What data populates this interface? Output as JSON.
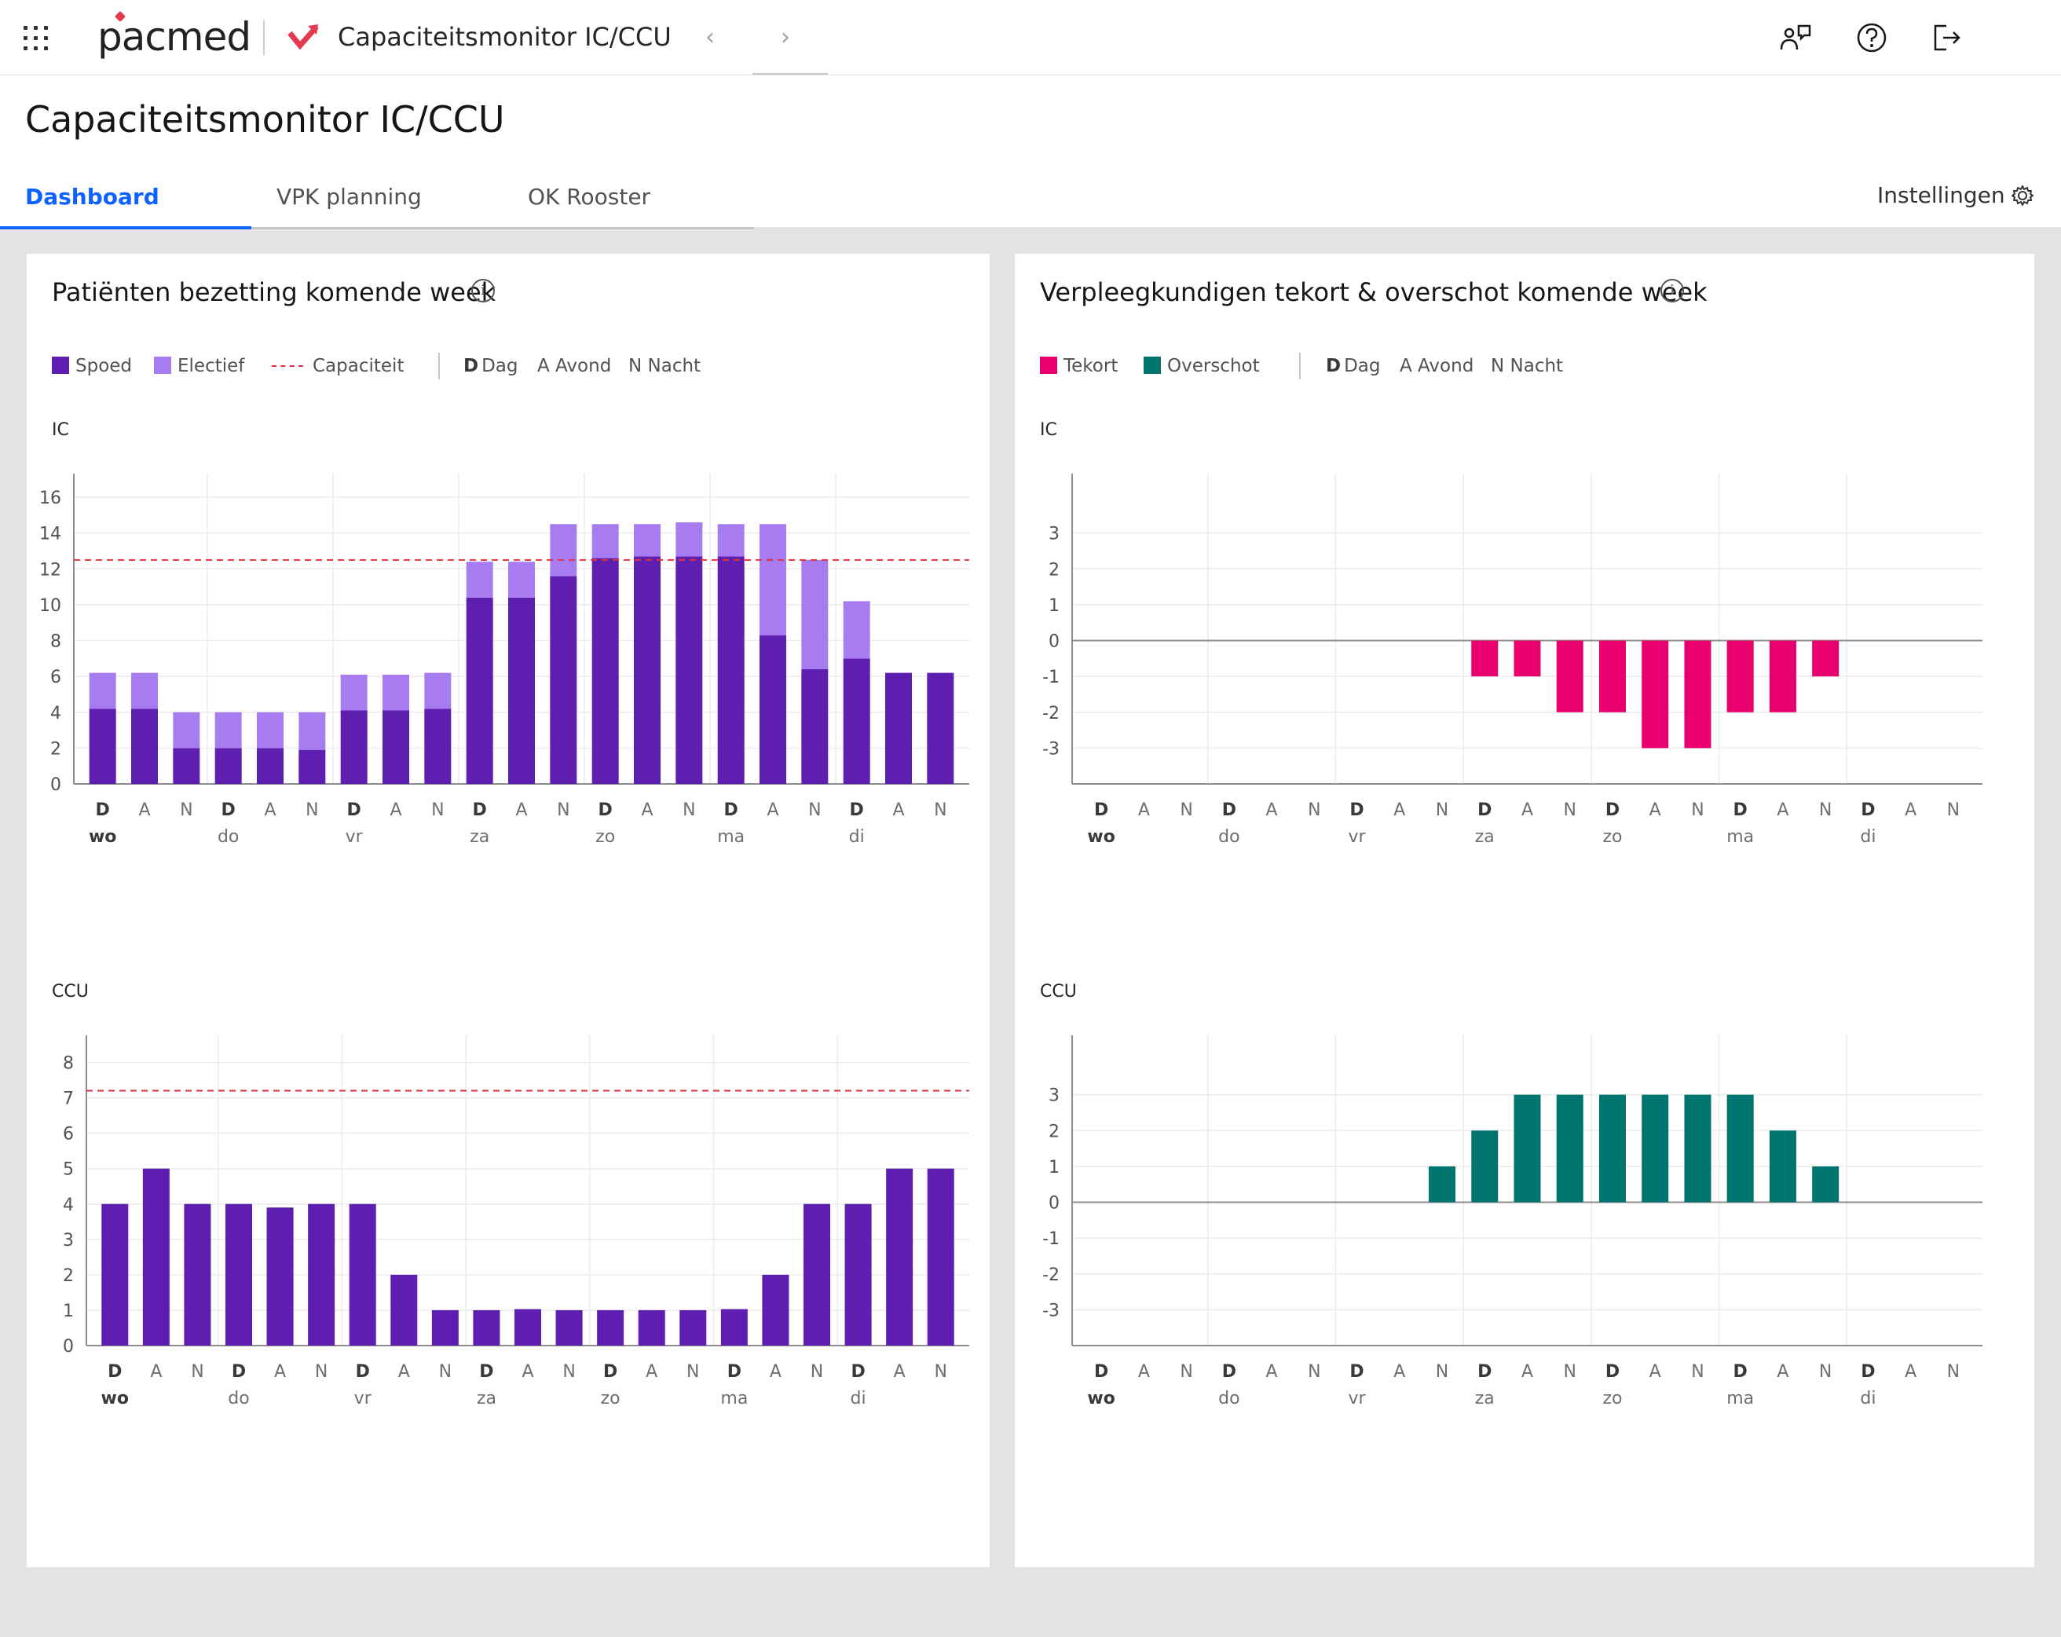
{
  "header": {
    "brand": "pacmed",
    "app_title": "Capaciteitsmonitor IC/CCU",
    "icons": [
      "apps-grid-icon",
      "chevron-left-icon",
      "chevron-right-icon",
      "user-feedback-icon",
      "help-icon",
      "logout-icon"
    ]
  },
  "page": {
    "title": "Capaciteitsmonitor IC/CCU",
    "tabs": [
      {
        "label": "Dashboard",
        "active": true
      },
      {
        "label": "VPK planning",
        "active": false
      },
      {
        "label": "OK Rooster",
        "active": false
      }
    ],
    "settings_label": "Instellingen"
  },
  "colors": {
    "spoed": "#5e1fb0",
    "electief": "#a67cf0",
    "capaciteit": "#e0323c",
    "tekort": "#e8006e",
    "overschot": "#00756f",
    "active_tab": "#0f62fe"
  },
  "panels": {
    "left": {
      "title": "Patiënten bezetting komende week",
      "legend": {
        "spoed": "Spoed",
        "electief": "Electief",
        "capaciteit": "Capaciteit",
        "dag_key": "D",
        "dag": "Dag",
        "avond_key": "A",
        "avond": "Avond",
        "nacht_key": "N",
        "nacht": "Nacht"
      }
    },
    "right": {
      "title": "Verpleegkundigen tekort & overschot komende week",
      "legend": {
        "tekort": "Tekort",
        "overschot": "Overschot",
        "dag_key": "D",
        "dag": "Dag",
        "avond_key": "A",
        "avond": "Avond",
        "nacht_key": "N",
        "nacht": "Nacht"
      }
    }
  },
  "chart_data": [
    {
      "id": "bezetting-ic",
      "type": "bar",
      "stacked": true,
      "title": "IC",
      "shifts": [
        "D",
        "A",
        "N",
        "D",
        "A",
        "N",
        "D",
        "A",
        "N",
        "D",
        "A",
        "N",
        "D",
        "A",
        "N",
        "D",
        "A",
        "N",
        "D",
        "A",
        "N"
      ],
      "days": [
        "wo",
        "do",
        "vr",
        "za",
        "zo",
        "ma",
        "di"
      ],
      "series": [
        {
          "name": "Spoed",
          "values": [
            4.2,
            4.2,
            2,
            2,
            2,
            1.9,
            4.1,
            4.1,
            4.2,
            10.4,
            10.4,
            11.6,
            12.6,
            12.7,
            12.7,
            12.7,
            8.3,
            6.4,
            7.0,
            6.2,
            6.2
          ]
        },
        {
          "name": "Electief",
          "values": [
            2,
            2,
            2,
            2,
            2,
            2.1,
            2,
            2,
            2,
            2,
            2,
            2.9,
            1.9,
            1.8,
            1.9,
            1.8,
            6.2,
            6.1,
            3.2,
            0,
            0
          ]
        }
      ],
      "capaciteit": 12.5,
      "ylim": [
        0,
        16
      ],
      "yticks": [
        0,
        2,
        4,
        6,
        8,
        10,
        12,
        14,
        16
      ],
      "grid": true
    },
    {
      "id": "bezetting-ccu",
      "type": "bar",
      "title": "CCU",
      "shifts": [
        "D",
        "A",
        "N",
        "D",
        "A",
        "N",
        "D",
        "A",
        "N",
        "D",
        "A",
        "N",
        "D",
        "A",
        "N",
        "D",
        "A",
        "N",
        "D",
        "A",
        "N"
      ],
      "days": [
        "wo",
        "do",
        "vr",
        "za",
        "zo",
        "ma",
        "di"
      ],
      "series": [
        {
          "name": "Spoed",
          "values": [
            4,
            5,
            4,
            4,
            3.9,
            4,
            4,
            2,
            1,
            1,
            1.03,
            1,
            1,
            1,
            1,
            1.03,
            2,
            4,
            4,
            5,
            5
          ]
        }
      ],
      "capaciteit": 7.2,
      "ylim": [
        0,
        8.1
      ],
      "yticks": [
        0,
        1,
        2,
        3,
        4,
        5,
        6,
        7,
        8
      ],
      "grid": true
    },
    {
      "id": "vpk-ic",
      "type": "bar",
      "title": "IC",
      "shifts": [
        "D",
        "A",
        "N",
        "D",
        "A",
        "N",
        "D",
        "A",
        "N",
        "D",
        "A",
        "N",
        "D",
        "A",
        "N",
        "D",
        "A",
        "N",
        "D",
        "A",
        "N"
      ],
      "days": [
        "wo",
        "do",
        "vr",
        "za",
        "zo",
        "ma",
        "di"
      ],
      "series": [
        {
          "name": "Tekort",
          "values": [
            0,
            0,
            0,
            0,
            0,
            0,
            0,
            0,
            0,
            -1,
            -1,
            -2,
            -2,
            -3,
            -3,
            -2,
            -2,
            -1,
            0,
            0,
            0
          ]
        }
      ],
      "ylim": [
        -4,
        4
      ],
      "yticks": [
        -3,
        -2,
        -1,
        0,
        1,
        2,
        3
      ],
      "grid": true
    },
    {
      "id": "vpk-ccu",
      "type": "bar",
      "title": "CCU",
      "shifts": [
        "D",
        "A",
        "N",
        "D",
        "A",
        "N",
        "D",
        "A",
        "N",
        "D",
        "A",
        "N",
        "D",
        "A",
        "N",
        "D",
        "A",
        "N",
        "D",
        "A",
        "N"
      ],
      "days": [
        "wo",
        "do",
        "vr",
        "za",
        "zo",
        "ma",
        "di"
      ],
      "series": [
        {
          "name": "Overschot",
          "values": [
            0,
            0,
            0,
            0,
            0,
            0,
            0,
            0,
            1,
            2,
            3,
            3,
            3,
            3,
            3,
            3,
            2,
            1,
            0,
            0,
            0
          ]
        }
      ],
      "ylim": [
        -4,
        4
      ],
      "yticks": [
        -3,
        -2,
        -1,
        0,
        1,
        2,
        3
      ],
      "grid": true
    }
  ]
}
